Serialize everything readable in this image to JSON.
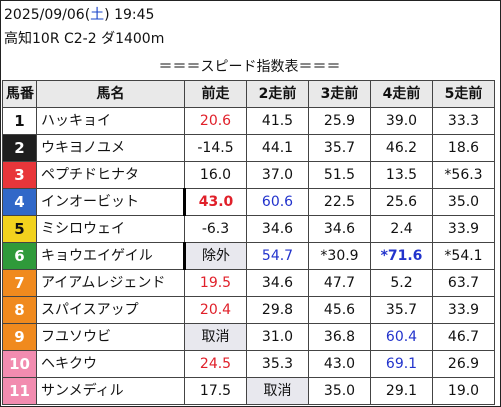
{
  "header": {
    "date": "2025/09/06",
    "dow_open": "(",
    "dow": "土",
    "dow_close": ")",
    "time": "19:45",
    "race": "高知10R C2-2 ダ1400m"
  },
  "title": "＝＝＝スピード指数表＝＝＝",
  "columns": [
    "馬番",
    "馬名",
    "前走",
    "2走前",
    "3走前",
    "4走前",
    "5走前"
  ],
  "colors": {
    "red": "#e0202a",
    "blue": "#2233cc",
    "gate_colors": [
      "#ffffff",
      "#1e1e1e",
      "#e8363a",
      "#3168c8",
      "#f2d21e",
      "#2f9a3a",
      "#f08a1e",
      "#f08a1e",
      "#f08a1e",
      "#f28cb0",
      "#f28cb0"
    ]
  },
  "rows": [
    {
      "num": "1",
      "name": "ハッキョイ",
      "r1": "20.6",
      "r2": "41.5",
      "r3": "25.9",
      "r4": "39.0",
      "r5": "33.3"
    },
    {
      "num": "2",
      "name": "ウキヨノユメ",
      "r1": "-14.5",
      "r2": "44.1",
      "r3": "35.7",
      "r4": "46.2",
      "r5": "18.6"
    },
    {
      "num": "3",
      "name": "ペプチドヒナタ",
      "r1": "16.0",
      "r2": "37.0",
      "r3": "51.5",
      "r4": "13.5",
      "r5": "*56.3"
    },
    {
      "num": "4",
      "name": "インオービット",
      "r1": "43.0",
      "r2": "60.6",
      "r3": "22.5",
      "r4": "25.6",
      "r5": "35.0"
    },
    {
      "num": "5",
      "name": "ミシロウェイ",
      "r1": "-6.3",
      "r2": "34.6",
      "r3": "34.6",
      "r4": "2.4",
      "r5": "33.9"
    },
    {
      "num": "6",
      "name": "キョウエイゲイル",
      "r1": "除外",
      "r2": "54.7",
      "r3": "*30.9",
      "r4": "*71.6",
      "r5": "*54.1"
    },
    {
      "num": "7",
      "name": "アイアムレジェンド",
      "r1": "19.5",
      "r2": "34.6",
      "r3": "47.7",
      "r4": "5.2",
      "r5": "63.7"
    },
    {
      "num": "8",
      "name": "スパイスアップ",
      "r1": "20.4",
      "r2": "29.8",
      "r3": "45.6",
      "r4": "35.7",
      "r5": "33.9"
    },
    {
      "num": "9",
      "name": "フユソウビ",
      "r1": "取消",
      "r2": "31.0",
      "r3": "36.8",
      "r4": "60.4",
      "r5": "46.7"
    },
    {
      "num": "10",
      "name": "ヘキクウ",
      "r1": "24.5",
      "r2": "35.3",
      "r3": "43.0",
      "r4": "69.1",
      "r5": "26.9"
    },
    {
      "num": "11",
      "name": "サンメディル",
      "r1": "17.5",
      "r2": "取消",
      "r3": "35.0",
      "r4": "29.1",
      "r5": "19.0"
    }
  ]
}
